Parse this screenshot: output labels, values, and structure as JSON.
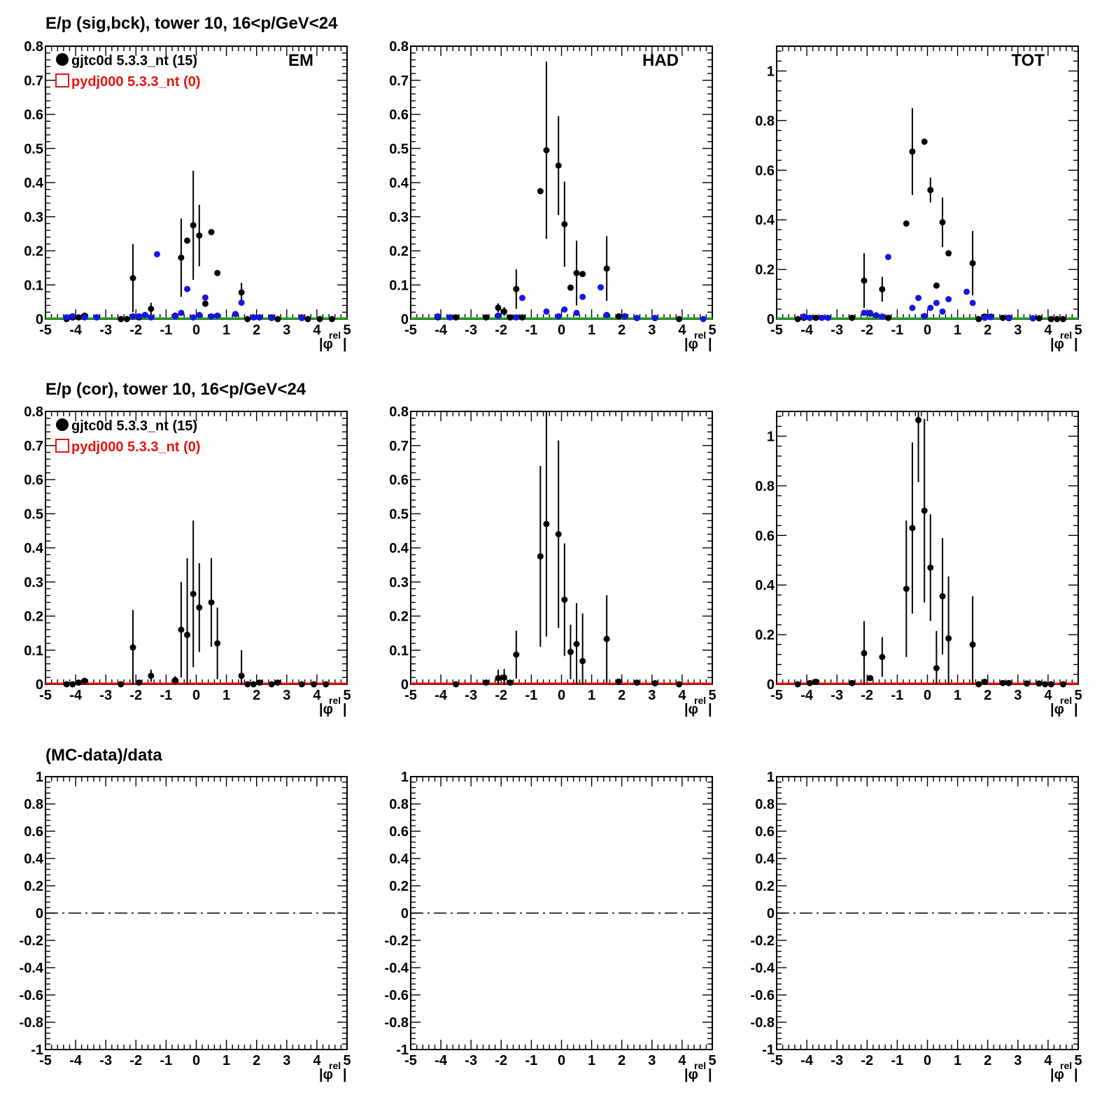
{
  "row_titles": {
    "row0": "E/p (sig,bck), tower 10, 16<p/GeV<24",
    "row1": "E/p (cor), tower 10, 16<p/GeV<24",
    "row2": "(MC-data)/data"
  },
  "axis_label": {
    "main": "|φ",
    "sup": "rel",
    "close": "|"
  },
  "legend": {
    "data_label": "gjtc0d 5.3.3_nt (15)",
    "mc_label": "pydj000 5.3.3_nt (0)",
    "data_color": "#000000",
    "mc_color": "#e8140c"
  },
  "colors": {
    "data": "#000000",
    "background": "#1515e6",
    "baseline_sig": "#22aa22",
    "baseline_cor": "#e8140c"
  },
  "chart_data": [
    {
      "type": "scatter",
      "panel": "sig-em",
      "corner_label": "EM",
      "xlim": [
        -5,
        5
      ],
      "ylim": [
        0,
        0.8
      ],
      "xticks": [
        -5,
        -4,
        -3,
        -2,
        -1,
        0,
        1,
        2,
        3,
        4,
        5
      ],
      "yticks": [
        0,
        0.1,
        0.2,
        0.3,
        0.4,
        0.5,
        0.6,
        0.7,
        0.8
      ],
      "ytick_labels": [
        "0",
        "0.1",
        "0.2",
        "0.3",
        "0.4",
        "0.5",
        "0.6",
        "0.7",
        "0.8"
      ],
      "baseline": "sig",
      "series": [
        {
          "name": "gjtc0d 5.3.3_nt (15)",
          "role": "data",
          "x": [
            -4.3,
            -4.1,
            -3.9,
            -3.7,
            -3.3,
            -2.5,
            -2.3,
            -2.1,
            -1.9,
            -1.5,
            -0.7,
            -0.5,
            -0.3,
            -0.1,
            0.1,
            0.3,
            0.5,
            0.7,
            1.5,
            1.7,
            1.9,
            2.1,
            2.5,
            2.7,
            3.5,
            3.7,
            4.1,
            4.5
          ],
          "y": [
            0.0,
            0.005,
            0.005,
            0.01,
            0.005,
            0.0,
            0.0,
            0.12,
            0.005,
            0.03,
            0.01,
            0.18,
            0.23,
            0.275,
            0.245,
            0.045,
            0.255,
            0.135,
            0.078,
            0.0,
            0.005,
            0.005,
            0.005,
            0.0,
            0.005,
            0.0,
            0.0,
            0.0
          ],
          "err": [
            0,
            0,
            0,
            0,
            0,
            0,
            0,
            0.1,
            0,
            0.018,
            0,
            0.115,
            0,
            0.16,
            0.09,
            0,
            0,
            0,
            0.028,
            0,
            0,
            0,
            0,
            0,
            0,
            0,
            0,
            0
          ]
        },
        {
          "name": "",
          "role": "background",
          "x": [
            -4.3,
            -4.1,
            -3.7,
            -3.3,
            -2.1,
            -1.9,
            -1.7,
            -1.5,
            -1.3,
            -0.7,
            -0.5,
            -0.3,
            -0.1,
            0.1,
            0.3,
            0.5,
            0.7,
            1.3,
            1.5,
            1.9,
            2.1,
            2.5,
            3.5
          ],
          "y": [
            0.005,
            0.008,
            0.005,
            0.005,
            0.008,
            0.008,
            0.012,
            0.005,
            0.19,
            0.008,
            0.018,
            0.088,
            0.005,
            0.012,
            0.063,
            0.008,
            0.01,
            0.015,
            0.048,
            0.005,
            0.005,
            0.003,
            0.003
          ]
        }
      ]
    },
    {
      "type": "scatter",
      "panel": "sig-had",
      "corner_label": "HAD",
      "xlim": [
        -5,
        5
      ],
      "ylim": [
        0,
        0.8
      ],
      "xticks": [
        -5,
        -4,
        -3,
        -2,
        -1,
        0,
        1,
        2,
        3,
        4,
        5
      ],
      "yticks": [
        0,
        0.1,
        0.2,
        0.3,
        0.4,
        0.5,
        0.6,
        0.7,
        0.8
      ],
      "ytick_labels": [
        "0",
        "0.1",
        "0.2",
        "0.3",
        "0.4",
        "0.5",
        "0.6",
        "0.7",
        "0.8"
      ],
      "baseline": "sig",
      "series": [
        {
          "name": "",
          "role": "data",
          "x": [
            -4.1,
            -3.5,
            -2.5,
            -2.1,
            -1.9,
            -1.7,
            -1.5,
            -1.3,
            -0.7,
            -0.5,
            -0.1,
            0.1,
            0.3,
            0.5,
            0.7,
            1.5,
            1.9,
            2.1,
            2.5,
            3.1,
            3.9
          ],
          "y": [
            0.005,
            0.005,
            0.005,
            0.033,
            0.022,
            0.005,
            0.088,
            0.005,
            0.375,
            0.495,
            0.45,
            0.278,
            0.092,
            0.135,
            0.132,
            0.148,
            0.008,
            0.008,
            0.003,
            0.003,
            0.0
          ],
          "err": [
            0,
            0,
            0,
            0.013,
            0.013,
            0,
            0.058,
            0,
            0,
            0.26,
            0.145,
            0.125,
            0,
            0.095,
            0,
            0.095,
            0,
            0,
            0,
            0,
            0
          ]
        },
        {
          "name": "",
          "role": "background",
          "x": [
            -4.1,
            -3.7,
            -2.1,
            -1.5,
            -1.3,
            -0.5,
            -0.1,
            0.1,
            0.5,
            0.7,
            1.3,
            1.5,
            2.1,
            2.5,
            3.1,
            4.7
          ],
          "y": [
            0.008,
            0.005,
            0.01,
            0.005,
            0.062,
            0.022,
            0.008,
            0.028,
            0.018,
            0.065,
            0.093,
            0.012,
            0.008,
            0.003,
            0.003,
            0.0
          ]
        }
      ]
    },
    {
      "type": "scatter",
      "panel": "sig-tot",
      "corner_label": "TOT",
      "xlim": [
        -5,
        5
      ],
      "ylim": [
        0,
        1.1
      ],
      "xticks": [
        -5,
        -4,
        -3,
        -2,
        -1,
        0,
        1,
        2,
        3,
        4,
        5
      ],
      "yticks": [
        0,
        0.2,
        0.4,
        0.6,
        0.8,
        1
      ],
      "ytick_labels": [
        "0",
        "0.2",
        "0.4",
        "0.6",
        "0.8",
        "1"
      ],
      "baseline": "sig",
      "series": [
        {
          "name": "",
          "role": "data",
          "x": [
            -4.3,
            -4.1,
            -3.9,
            -3.7,
            -2.5,
            -2.1,
            -1.9,
            -1.5,
            -1.3,
            -0.7,
            -0.5,
            -0.1,
            0.1,
            0.3,
            0.5,
            0.7,
            1.5,
            1.7,
            1.9,
            2.1,
            2.5,
            2.7,
            3.5,
            3.7,
            4.1,
            4.3,
            4.5
          ],
          "y": [
            0.0,
            0.005,
            0.005,
            0.005,
            0.005,
            0.155,
            0.022,
            0.12,
            0.005,
            0.385,
            0.675,
            0.715,
            0.52,
            0.135,
            0.39,
            0.265,
            0.225,
            0.0,
            0.01,
            0.01,
            0.005,
            0.005,
            0.003,
            0.003,
            0.0,
            0.0,
            0.0
          ],
          "err": [
            0,
            0,
            0,
            0,
            0,
            0.11,
            0,
            0.05,
            0,
            0,
            0.175,
            0.012,
            0.05,
            0,
            0.1,
            0,
            0.13,
            0,
            0,
            0,
            0,
            0,
            0,
            0,
            0,
            0,
            0
          ]
        },
        {
          "name": "",
          "role": "background",
          "x": [
            -4.1,
            -3.9,
            -3.5,
            -3.3,
            -2.1,
            -1.9,
            -1.7,
            -1.5,
            -1.3,
            -0.5,
            -0.3,
            -0.1,
            0.1,
            0.3,
            0.5,
            0.7,
            1.3,
            1.5,
            1.9,
            2.1,
            2.7,
            3.5
          ],
          "y": [
            0.01,
            0.005,
            0.005,
            0.005,
            0.025,
            0.025,
            0.015,
            0.01,
            0.25,
            0.045,
            0.085,
            0.012,
            0.045,
            0.065,
            0.03,
            0.08,
            0.11,
            0.065,
            0.005,
            0.008,
            0.003,
            0.003
          ]
        }
      ]
    },
    {
      "type": "scatter",
      "panel": "cor-em",
      "xlim": [
        -5,
        5
      ],
      "ylim": [
        0,
        0.8
      ],
      "xticks": [
        -5,
        -4,
        -3,
        -2,
        -1,
        0,
        1,
        2,
        3,
        4,
        5
      ],
      "yticks": [
        0,
        0.1,
        0.2,
        0.3,
        0.4,
        0.5,
        0.6,
        0.7,
        0.8
      ],
      "ytick_labels": [
        "0",
        "0.1",
        "0.2",
        "0.3",
        "0.4",
        "0.5",
        "0.6",
        "0.7",
        "0.8"
      ],
      "baseline": "cor",
      "series": [
        {
          "name": "gjtc0d 5.3.3_nt (15)",
          "role": "data",
          "x": [
            -4.3,
            -4.1,
            -3.9,
            -3.7,
            -2.5,
            -2.1,
            -1.9,
            -1.5,
            -0.7,
            -0.5,
            -0.3,
            -0.1,
            0.1,
            0.5,
            0.7,
            1.5,
            1.7,
            1.9,
            2.1,
            2.5,
            2.7,
            3.5,
            3.9,
            4.3
          ],
          "y": [
            0.0,
            0.0,
            0.005,
            0.01,
            0.0,
            0.108,
            0.005,
            0.025,
            0.012,
            0.16,
            0.145,
            0.265,
            0.225,
            0.24,
            0.12,
            0.025,
            0.0,
            0.0,
            0.005,
            0.0,
            0.005,
            0.0,
            0.0,
            0.0
          ],
          "err": [
            0,
            0,
            0,
            0,
            0,
            0.11,
            0,
            0.018,
            0.012,
            0.14,
            0.225,
            0.215,
            0.13,
            0.13,
            0.105,
            0.075,
            0,
            0,
            0,
            0,
            0,
            0,
            0,
            0
          ]
        }
      ]
    },
    {
      "type": "scatter",
      "panel": "cor-had",
      "xlim": [
        -5,
        5
      ],
      "ylim": [
        0,
        0.8
      ],
      "xticks": [
        -5,
        -4,
        -3,
        -2,
        -1,
        0,
        1,
        2,
        3,
        4,
        5
      ],
      "yticks": [
        0,
        0.1,
        0.2,
        0.3,
        0.4,
        0.5,
        0.6,
        0.7,
        0.8
      ],
      "ytick_labels": [
        "0",
        "0.1",
        "0.2",
        "0.3",
        "0.4",
        "0.5",
        "0.6",
        "0.7",
        "0.8"
      ],
      "baseline": "cor",
      "series": [
        {
          "name": "",
          "role": "data",
          "x": [
            -3.5,
            -2.5,
            -2.1,
            -1.9,
            -1.7,
            -1.5,
            -0.7,
            -0.5,
            -0.1,
            0.1,
            0.3,
            0.5,
            0.7,
            1.5,
            1.9,
            2.5,
            3.1,
            3.9
          ],
          "y": [
            0.0,
            0.005,
            0.018,
            0.02,
            0.005,
            0.087,
            0.375,
            0.47,
            0.44,
            0.248,
            0.095,
            0.118,
            0.068,
            0.133,
            0.008,
            0.005,
            0.003,
            0.0
          ],
          "err": [
            0,
            0,
            0.025,
            0.025,
            0,
            0.07,
            0.265,
            0.33,
            0.275,
            0.165,
            0.08,
            0.12,
            0.14,
            0.128,
            0,
            0,
            0,
            0
          ]
        }
      ]
    },
    {
      "type": "scatter",
      "panel": "cor-tot",
      "xlim": [
        -5,
        5
      ],
      "ylim": [
        0,
        1.1
      ],
      "xticks": [
        -5,
        -4,
        -3,
        -2,
        -1,
        0,
        1,
        2,
        3,
        4,
        5
      ],
      "yticks": [
        0,
        0.2,
        0.4,
        0.6,
        0.8,
        1
      ],
      "ytick_labels": [
        "0",
        "0.2",
        "0.4",
        "0.6",
        "0.8",
        "1"
      ],
      "baseline": "cor",
      "series": [
        {
          "name": "",
          "role": "data",
          "x": [
            -4.3,
            -3.9,
            -3.7,
            -2.5,
            -2.1,
            -1.9,
            -1.5,
            -0.7,
            -0.5,
            -0.3,
            -0.1,
            0.1,
            0.3,
            0.5,
            0.7,
            1.5,
            1.7,
            1.9,
            2.5,
            2.7,
            3.3,
            3.7,
            3.9,
            4.1,
            4.5
          ],
          "y": [
            0.0,
            0.005,
            0.01,
            0.005,
            0.125,
            0.025,
            0.11,
            0.385,
            0.63,
            1.065,
            0.7,
            0.47,
            0.065,
            0.355,
            0.185,
            0.16,
            0.0,
            0.01,
            0.005,
            0.005,
            0.003,
            0.003,
            0.0,
            0.0,
            0.0
          ],
          "err": [
            0,
            0,
            0,
            0,
            0.13,
            0,
            0.08,
            0.275,
            0.345,
            0.25,
            0.37,
            0.215,
            0.15,
            0.235,
            0.25,
            0.195,
            0,
            0,
            0,
            0,
            0,
            0,
            0,
            0,
            0
          ]
        }
      ]
    },
    {
      "type": "line",
      "panel": "ratio-em",
      "xlim": [
        -5,
        5
      ],
      "ylim": [
        -1,
        1
      ],
      "xticks": [
        -5,
        -4,
        -3,
        -2,
        -1,
        0,
        1,
        2,
        3,
        4,
        5
      ],
      "yticks": [
        -1,
        -0.8,
        -0.6,
        -0.4,
        -0.2,
        0,
        0.2,
        0.4,
        0.6,
        0.8,
        1
      ],
      "ytick_labels": [
        "-1",
        "-0.8",
        "-0.6",
        "-0.4",
        "-0.2",
        "0",
        "0.2",
        "0.4",
        "0.6",
        "0.8",
        "1"
      ],
      "reference_line": 0,
      "series": []
    },
    {
      "type": "line",
      "panel": "ratio-had",
      "xlim": [
        -5,
        5
      ],
      "ylim": [
        -1,
        1
      ],
      "xticks": [
        -5,
        -4,
        -3,
        -2,
        -1,
        0,
        1,
        2,
        3,
        4,
        5
      ],
      "yticks": [
        -1,
        -0.8,
        -0.6,
        -0.4,
        -0.2,
        0,
        0.2,
        0.4,
        0.6,
        0.8,
        1
      ],
      "ytick_labels": [
        "-1",
        "-0.8",
        "-0.6",
        "-0.4",
        "-0.2",
        "0",
        "0.2",
        "0.4",
        "0.6",
        "0.8",
        "1"
      ],
      "reference_line": 0,
      "series": []
    },
    {
      "type": "line",
      "panel": "ratio-tot",
      "xlim": [
        -5,
        5
      ],
      "ylim": [
        -1,
        1
      ],
      "xticks": [
        -5,
        -4,
        -3,
        -2,
        -1,
        0,
        1,
        2,
        3,
        4,
        5
      ],
      "yticks": [
        -1,
        -0.8,
        -0.6,
        -0.4,
        -0.2,
        0,
        0.2,
        0.4,
        0.6,
        0.8,
        1
      ],
      "ytick_labels": [
        "-1",
        "-0.8",
        "-0.6",
        "-0.4",
        "-0.2",
        "0",
        "0.2",
        "0.4",
        "0.6",
        "0.8",
        "1"
      ],
      "reference_line": 0,
      "series": []
    }
  ]
}
